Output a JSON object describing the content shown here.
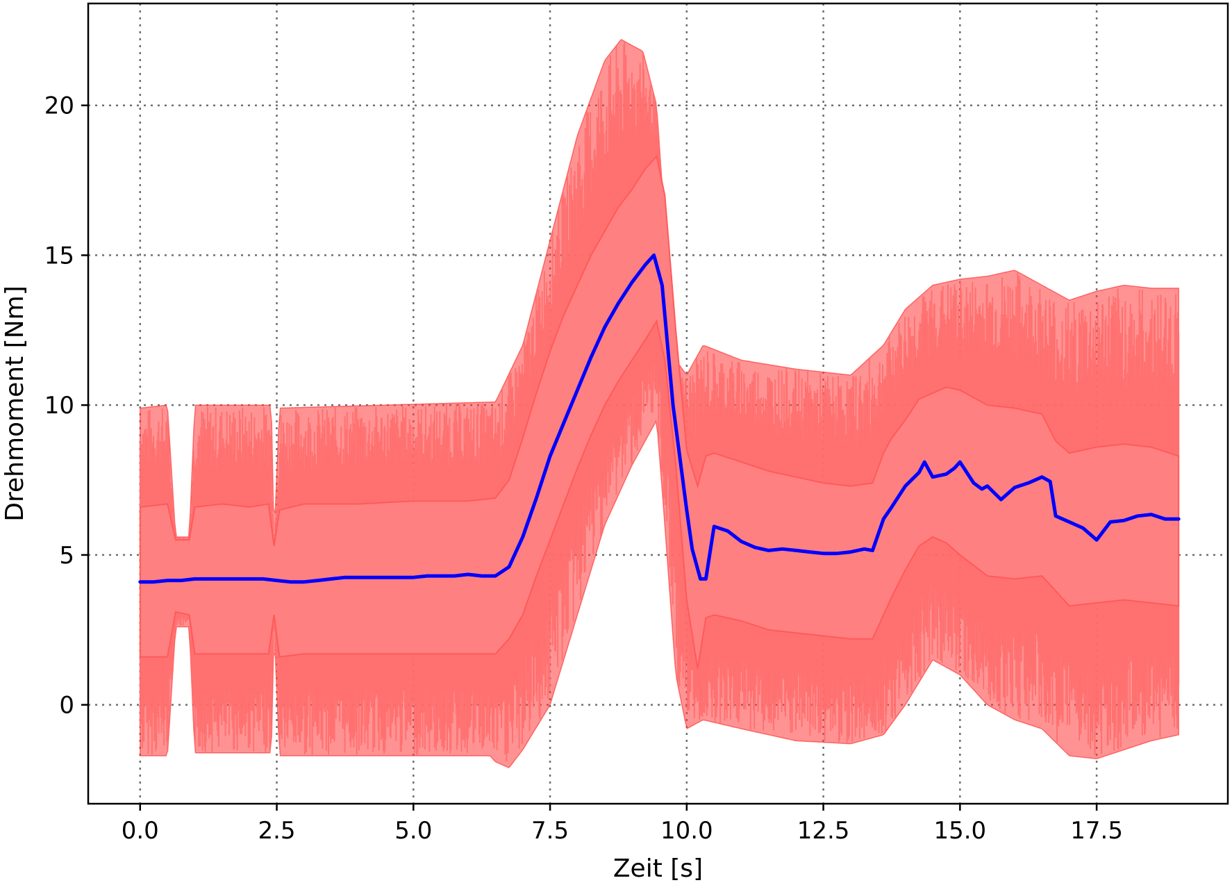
{
  "chart_data": {
    "type": "line",
    "title": "",
    "xlabel": "Zeit [s]",
    "ylabel": "Drehmoment [Nm]",
    "xlim": [
      -0.95,
      19.9
    ],
    "ylim": [
      -3.3,
      23.4
    ],
    "xticks": [
      0.0,
      2.5,
      5.0,
      7.5,
      10.0,
      12.5,
      15.0,
      17.5
    ],
    "xtick_labels": [
      "0.0",
      "2.5",
      "5.0",
      "7.5",
      "10.0",
      "12.5",
      "15.0",
      "17.5"
    ],
    "yticks": [
      0,
      5,
      10,
      15,
      20
    ],
    "ytick_labels": [
      "0",
      "5",
      "10",
      "15",
      "20"
    ],
    "grid": true,
    "colors": {
      "mean": "#0000ff",
      "band": "#ff8080",
      "spikes": "#ff3b3b"
    },
    "series": [
      {
        "role": "mean",
        "x": [
          0.0,
          0.25,
          0.5,
          0.75,
          1.0,
          1.25,
          1.5,
          1.75,
          2.0,
          2.25,
          2.5,
          2.75,
          3.0,
          3.25,
          3.5,
          3.75,
          4.0,
          4.25,
          4.5,
          4.75,
          5.0,
          5.25,
          5.5,
          5.75,
          6.0,
          6.25,
          6.5,
          6.75,
          7.0,
          7.25,
          7.5,
          7.75,
          8.0,
          8.25,
          8.5,
          8.75,
          9.0,
          9.25,
          9.4,
          9.55,
          9.75,
          10.0,
          10.1,
          10.25,
          10.35,
          10.5,
          10.75,
          11.0,
          11.25,
          11.5,
          11.75,
          12.0,
          12.25,
          12.5,
          12.75,
          13.0,
          13.25,
          13.4,
          13.6,
          13.75,
          14.0,
          14.25,
          14.35,
          14.5,
          14.75,
          14.9,
          15.0,
          15.25,
          15.4,
          15.5,
          15.75,
          16.0,
          16.25,
          16.5,
          16.65,
          16.75,
          17.0,
          17.25,
          17.5,
          17.75,
          18.0,
          18.25,
          18.5,
          18.75,
          19.0
        ],
        "y": [
          4.1,
          4.1,
          4.15,
          4.15,
          4.2,
          4.2,
          4.2,
          4.2,
          4.2,
          4.2,
          4.15,
          4.1,
          4.1,
          4.15,
          4.2,
          4.25,
          4.25,
          4.25,
          4.25,
          4.25,
          4.25,
          4.3,
          4.3,
          4.3,
          4.35,
          4.3,
          4.3,
          4.6,
          5.6,
          6.9,
          8.3,
          9.4,
          10.5,
          11.6,
          12.6,
          13.4,
          14.1,
          14.7,
          15.0,
          14.0,
          10.0,
          6.5,
          5.2,
          4.2,
          4.2,
          5.95,
          5.8,
          5.45,
          5.25,
          5.15,
          5.2,
          5.15,
          5.1,
          5.05,
          5.05,
          5.1,
          5.2,
          5.15,
          6.2,
          6.6,
          7.3,
          7.75,
          8.1,
          7.6,
          7.7,
          7.9,
          8.1,
          7.4,
          7.2,
          7.3,
          6.85,
          7.25,
          7.4,
          7.6,
          7.45,
          6.3,
          6.1,
          5.9,
          5.5,
          6.1,
          6.15,
          6.3,
          6.35,
          6.2,
          6.2
        ]
      },
      {
        "role": "upper",
        "x": [
          0.0,
          0.5,
          0.65,
          0.9,
          1.0,
          1.5,
          2.0,
          2.35,
          2.45,
          2.55,
          3.0,
          4.0,
          5.0,
          6.0,
          6.5,
          6.75,
          7.0,
          7.25,
          7.5,
          7.75,
          8.0,
          8.25,
          8.5,
          8.75,
          9.0,
          9.25,
          9.45,
          9.6,
          9.8,
          10.0,
          10.2,
          10.35,
          10.5,
          11.0,
          11.5,
          12.0,
          12.5,
          13.0,
          13.4,
          13.6,
          13.75,
          14.0,
          14.25,
          14.5,
          14.75,
          15.0,
          15.5,
          16.0,
          16.5,
          16.75,
          17.0,
          17.5,
          18.0,
          18.5,
          19.0
        ],
        "y": [
          6.6,
          6.7,
          5.5,
          5.5,
          6.6,
          6.7,
          6.6,
          6.7,
          5.3,
          6.5,
          6.7,
          6.7,
          6.8,
          6.8,
          6.9,
          7.5,
          8.9,
          10.4,
          11.8,
          13.0,
          14.0,
          15.0,
          15.8,
          16.6,
          17.2,
          17.9,
          18.3,
          17.0,
          12.5,
          8.5,
          7.3,
          8.3,
          8.4,
          8.1,
          7.8,
          7.6,
          7.4,
          7.3,
          7.4,
          8.4,
          8.9,
          9.5,
          10.2,
          10.4,
          10.6,
          10.5,
          10.0,
          9.9,
          9.7,
          8.8,
          8.4,
          8.6,
          8.7,
          8.6,
          8.3
        ]
      },
      {
        "role": "lower",
        "x": [
          0.0,
          0.5,
          0.65,
          0.9,
          1.0,
          1.5,
          2.0,
          2.35,
          2.45,
          2.55,
          3.0,
          4.0,
          5.0,
          6.0,
          6.5,
          6.75,
          7.0,
          7.25,
          7.5,
          7.75,
          8.0,
          8.25,
          8.5,
          8.75,
          9.0,
          9.25,
          9.45,
          9.6,
          9.8,
          10.0,
          10.2,
          10.35,
          10.5,
          11.0,
          11.5,
          12.0,
          12.5,
          13.0,
          13.4,
          13.6,
          13.75,
          14.0,
          14.25,
          14.5,
          14.75,
          15.0,
          15.5,
          16.0,
          16.5,
          16.75,
          17.0,
          17.5,
          18.0,
          18.5,
          19.0
        ],
        "y": [
          1.6,
          1.6,
          3.1,
          3.0,
          1.7,
          1.7,
          1.7,
          1.7,
          3.0,
          1.6,
          1.7,
          1.7,
          1.7,
          1.7,
          1.7,
          2.2,
          3.0,
          4.3,
          5.5,
          6.7,
          7.9,
          9.0,
          10.0,
          10.8,
          11.5,
          12.2,
          12.8,
          11.5,
          8.0,
          3.5,
          1.2,
          2.9,
          3.0,
          2.8,
          2.5,
          2.4,
          2.3,
          2.2,
          2.2,
          3.0,
          3.6,
          4.5,
          5.3,
          5.6,
          5.4,
          5.0,
          4.3,
          4.2,
          4.3,
          3.8,
          3.3,
          3.4,
          3.5,
          3.4,
          3.3
        ]
      },
      {
        "role": "spike-max",
        "x": [
          0.0,
          0.5,
          0.65,
          0.9,
          1.0,
          2.4,
          2.45,
          2.55,
          6.4,
          6.5,
          7.0,
          7.5,
          8.0,
          8.5,
          8.8,
          9.2,
          9.45,
          9.6,
          9.8,
          10.0,
          10.3,
          11.0,
          12.0,
          13.0,
          13.6,
          14.0,
          14.5,
          15.0,
          15.5,
          16.0,
          16.5,
          17.0,
          17.5,
          18.0,
          18.5,
          19.0
        ],
        "y": [
          9.9,
          10.0,
          5.6,
          5.6,
          10.0,
          10.0,
          5.5,
          9.9,
          10.1,
          10.1,
          12.0,
          15.5,
          19.0,
          21.5,
          22.2,
          21.8,
          20.0,
          16.0,
          11.5,
          11.0,
          12.0,
          11.5,
          11.2,
          11.0,
          12.0,
          13.2,
          14.0,
          14.2,
          14.3,
          14.5,
          14.0,
          13.5,
          13.8,
          14.0,
          13.9,
          13.9
        ]
      },
      {
        "role": "spike-min",
        "x": [
          0.0,
          0.5,
          0.65,
          0.9,
          1.0,
          2.4,
          2.45,
          2.55,
          6.4,
          6.5,
          6.75,
          7.0,
          7.5,
          8.0,
          8.5,
          9.0,
          9.45,
          9.6,
          9.8,
          10.0,
          10.3,
          11.0,
          12.0,
          13.0,
          13.6,
          14.0,
          14.5,
          15.0,
          15.5,
          16.0,
          16.5,
          17.0,
          17.5,
          18.0,
          18.5,
          19.0
        ],
        "y": [
          -1.7,
          -1.7,
          2.6,
          2.6,
          -1.6,
          -1.6,
          2.6,
          -1.7,
          -1.7,
          -1.9,
          -2.1,
          -1.5,
          0.0,
          3.0,
          6.0,
          8.0,
          9.5,
          6.0,
          1.0,
          -0.8,
          -0.5,
          -0.8,
          -1.2,
          -1.3,
          -1.0,
          0.0,
          1.5,
          1.0,
          0.0,
          -0.5,
          -0.8,
          -1.7,
          -1.8,
          -1.5,
          -1.2,
          -1.0
        ]
      }
    ]
  }
}
